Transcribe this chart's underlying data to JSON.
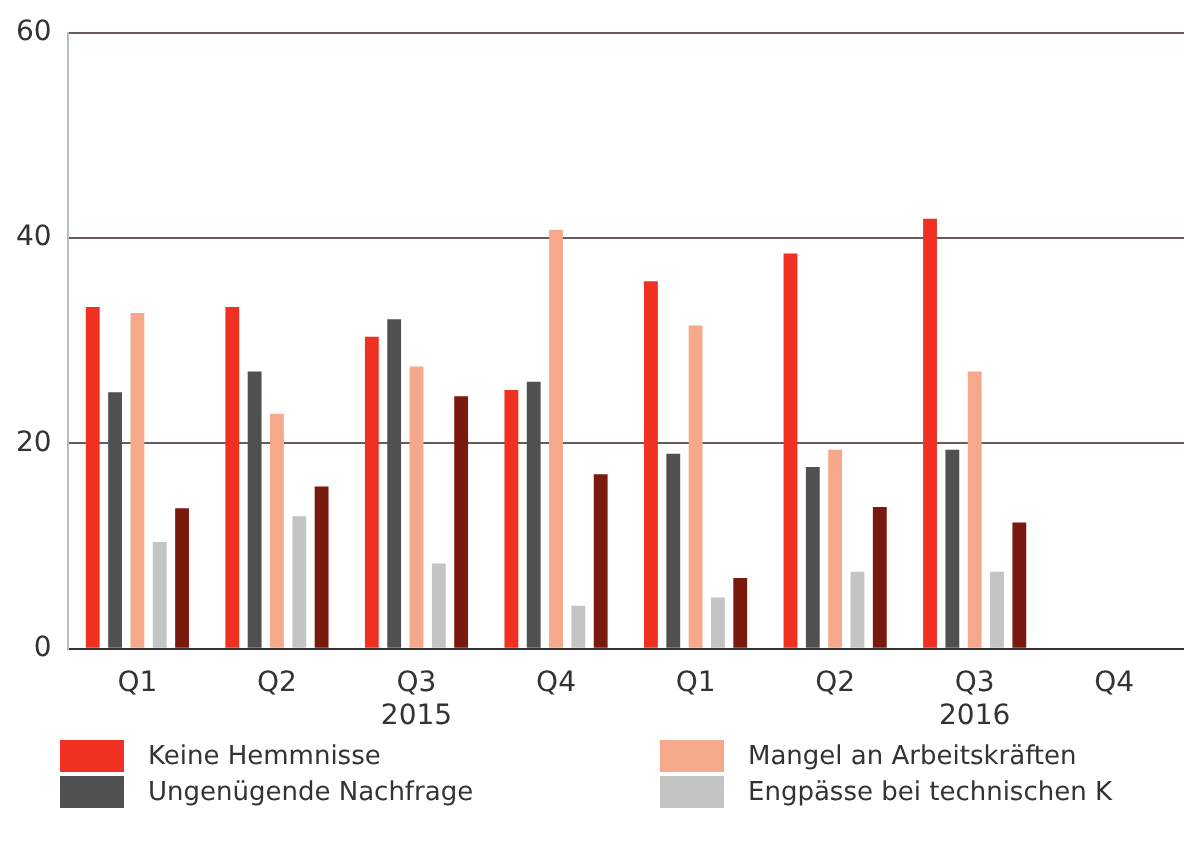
{
  "chart_data": {
    "type": "bar",
    "categories": [
      "Q1",
      "Q2",
      "Q3\n2015",
      "Q4",
      "Q1",
      "Q2",
      "Q3\n2016",
      "Q4"
    ],
    "series": [
      {
        "name": "Keine Hemmnisse",
        "color": "#f03020",
        "values": [
          33.3,
          33.3,
          30.4,
          25.2,
          35.8,
          38.5,
          41.9,
          null
        ]
      },
      {
        "name": "Ungenügende Nachfrage",
        "color": "#505050",
        "values": [
          25,
          27,
          32.1,
          26,
          19,
          17.7,
          19.4,
          null
        ]
      },
      {
        "name": "Mangel an Arbeitskräften",
        "color": "#f5a98a",
        "values": [
          32.7,
          22.9,
          27.5,
          40.8,
          31.5,
          19.4,
          27,
          null
        ]
      },
      {
        "name": "Engpässe bei technischen K",
        "color": "#c4c4c4",
        "values": [
          10.4,
          12.9,
          8.3,
          4.2,
          5,
          7.5,
          7.5,
          null
        ]
      },
      {
        "color": "#7a1a0e",
        "values": [
          13.7,
          15.8,
          24.6,
          17,
          6.9,
          13.8,
          12.3,
          null
        ]
      }
    ],
    "ylim": [
      0,
      60
    ],
    "yticks": [
      0,
      20,
      40,
      60
    ],
    "grid": "y",
    "legend": "bottom"
  }
}
